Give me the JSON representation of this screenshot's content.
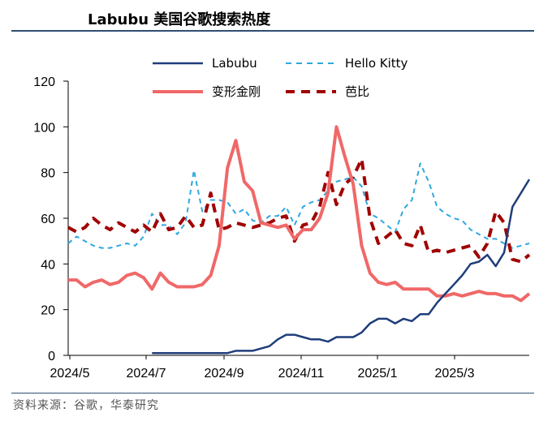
{
  "header": {
    "title": "Labubu 美国谷歌搜索热度"
  },
  "footer": {
    "source": "资料来源：谷歌，华泰研究"
  },
  "chart_data": {
    "type": "line",
    "title": "Labubu 美国谷歌搜索热度",
    "ylim": [
      0,
      120
    ],
    "yticks": [
      0,
      20,
      40,
      60,
      80,
      100,
      120
    ],
    "x_ticks": [
      "2024/5",
      "2024/7",
      "2024/9",
      "2024/11",
      "2025/1",
      "2025/3"
    ],
    "grid": false,
    "legend_position": "top",
    "series": [
      {
        "name": "Labubu",
        "color": "#1f3d7a",
        "dash": "solid",
        "values": [
          null,
          null,
          null,
          null,
          null,
          null,
          null,
          null,
          null,
          null,
          1,
          1,
          1,
          1,
          1,
          1,
          1,
          1,
          1,
          1,
          2,
          2,
          2,
          3,
          4,
          7,
          9,
          9,
          8,
          7,
          7,
          6,
          8,
          8,
          8,
          10,
          14,
          16,
          16,
          14,
          16,
          15,
          18,
          18,
          23,
          27,
          31,
          35,
          40,
          41,
          44,
          39,
          45,
          65,
          71,
          77
        ]
      },
      {
        "name": "Hello Kitty",
        "color": "#2fa8e0",
        "dash": "dashed",
        "values": [
          49,
          52,
          50,
          48,
          47,
          47,
          48,
          49,
          48,
          52,
          62,
          57,
          57,
          53,
          58,
          81,
          63,
          68,
          68,
          67,
          62,
          64,
          59,
          58,
          61,
          61,
          65,
          57,
          65,
          67,
          68,
          72,
          76,
          77,
          78,
          74,
          62,
          60,
          57,
          54,
          64,
          68,
          84,
          76,
          65,
          62,
          60,
          59,
          55,
          53,
          51,
          51,
          49,
          47,
          48,
          49
        ]
      },
      {
        "name": "变形金刚",
        "color": "#f06868",
        "dash": "solid",
        "values": [
          33,
          33,
          30,
          32,
          33,
          31,
          32,
          35,
          36,
          34,
          29,
          36,
          32,
          30,
          30,
          30,
          31,
          35,
          48,
          82,
          94,
          76,
          72,
          58,
          57,
          56,
          57,
          51,
          55,
          55,
          60,
          71,
          100,
          87,
          75,
          48,
          36,
          32,
          31,
          32,
          29,
          29,
          29,
          29,
          26,
          26,
          27,
          26,
          27,
          28,
          27,
          27,
          26,
          26,
          24,
          27
        ]
      },
      {
        "name": "芭比",
        "color": "#a00000",
        "dash": "dashed",
        "values": [
          56,
          54,
          56,
          60,
          57,
          55,
          58,
          56,
          54,
          57,
          54,
          62,
          55,
          56,
          61,
          56,
          57,
          71,
          55,
          56,
          58,
          57,
          56,
          57,
          58,
          60,
          61,
          50,
          57,
          58,
          65,
          80,
          66,
          75,
          78,
          86,
          60,
          49,
          52,
          55,
          49,
          48,
          57,
          45,
          46,
          45,
          46,
          47,
          48,
          43,
          49,
          63,
          58,
          42,
          41,
          44
        ]
      }
    ]
  }
}
